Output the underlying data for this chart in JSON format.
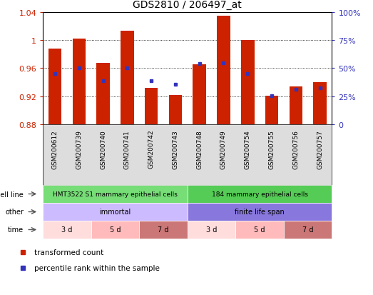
{
  "title": "GDS2810 / 206497_at",
  "samples": [
    "GSM200612",
    "GSM200739",
    "GSM200740",
    "GSM200741",
    "GSM200742",
    "GSM200743",
    "GSM200748",
    "GSM200749",
    "GSM200754",
    "GSM200755",
    "GSM200756",
    "GSM200757"
  ],
  "red_values": [
    0.988,
    1.002,
    0.968,
    1.013,
    0.932,
    0.922,
    0.966,
    1.035,
    1.0,
    0.921,
    0.934,
    0.94
  ],
  "blue_values": [
    0.952,
    0.96,
    0.942,
    0.96,
    0.942,
    0.937,
    0.967,
    0.968,
    0.952,
    0.921,
    0.93,
    0.932
  ],
  "y_min": 0.88,
  "y_max": 1.04,
  "bar_color": "#cc2200",
  "blue_color": "#3333bb",
  "cell_line_labels": [
    "HMT3522 S1 mammary epithelial cells",
    "184 mammary epithelial cells"
  ],
  "cell_line_color1": "#77dd77",
  "cell_line_color2": "#55cc55",
  "other_labels": [
    "immortal",
    "finite life span"
  ],
  "other_color1": "#ccbbff",
  "other_color2": "#8877dd",
  "time_labels": [
    "3 d",
    "5 d",
    "7 d",
    "3 d",
    "5 d",
    "7 d"
  ],
  "time_colors": [
    "#ffdddd",
    "#ffbbbb",
    "#cc7777",
    "#ffdddd",
    "#ffbbbb",
    "#cc7777"
  ],
  "label_color_left": "#cc2200",
  "label_color_right": "#3333bb",
  "bg_color": "#dddddd",
  "right_ticks_pct": [
    0,
    25,
    50,
    75,
    100
  ],
  "right_tick_labels": [
    "0",
    "25%",
    "50%",
    "75%",
    "100%"
  ]
}
